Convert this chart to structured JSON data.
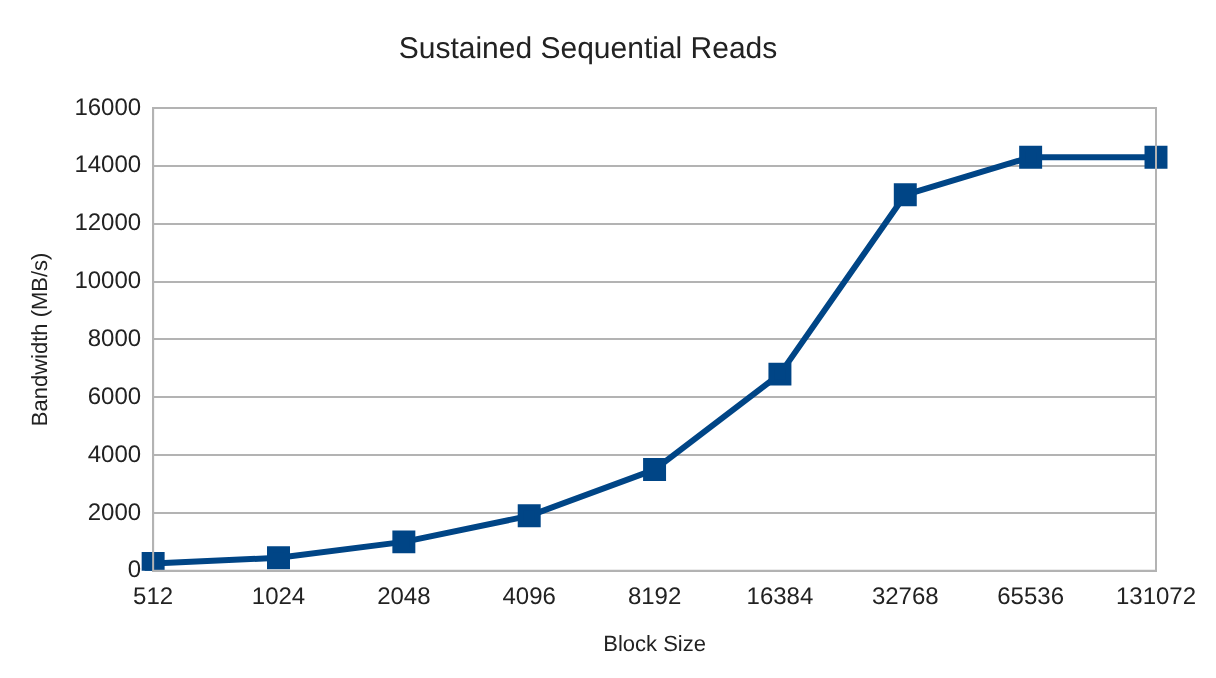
{
  "chart_data": {
    "type": "line",
    "title": "Sustained Sequential Reads",
    "xlabel": "Block Size",
    "ylabel": "Bandwidth (MB/s)",
    "categories": [
      "512",
      "1024",
      "2048",
      "4096",
      "8192",
      "16384",
      "32768",
      "65536",
      "131072"
    ],
    "series": [
      {
        "color": "#004586",
        "values": [
          250,
          450,
          1000,
          1900,
          3500,
          6800,
          13000,
          14300,
          14300
        ]
      }
    ],
    "ylim": [
      0,
      16000
    ],
    "yticks": [
      0,
      2000,
      4000,
      6000,
      8000,
      10000,
      12000,
      14000,
      16000
    ],
    "grid": "y",
    "legend": false,
    "marker": "square",
    "line_style": "solid"
  }
}
